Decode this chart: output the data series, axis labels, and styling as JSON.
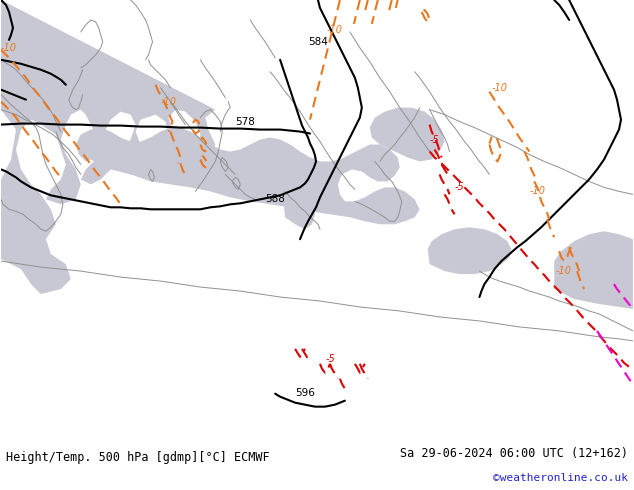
{
  "title_left": "Height/Temp. 500 hPa [gdmp][°C] ECMWF",
  "title_right": "Sa 29-06-2024 06:00 UTC (12+162)",
  "credit": "©weatheronline.co.uk",
  "land_color": "#c8f0a0",
  "sea_color": "#c8c8d4",
  "fig_width": 6.34,
  "fig_height": 4.9,
  "dpi": 100,
  "bottom_bar_color": "#ffffff",
  "geo_color": "#000000",
  "orange_color": "#e87820",
  "red_color": "#dd0000",
  "pink_color": "#ee00cc",
  "coast_color": "#909090",
  "footer_font_size": 8.5,
  "credit_color": "#2222cc"
}
